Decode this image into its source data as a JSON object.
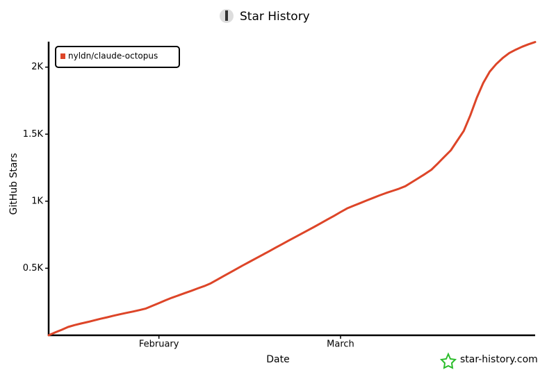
{
  "chart_data": {
    "type": "line",
    "title": "Star History",
    "x_label": "Date",
    "y_label": "GitHub Stars",
    "watermark": "star-history.com",
    "categories": [
      null,
      null,
      null,
      null,
      null,
      null,
      null,
      null,
      null,
      null,
      null,
      null,
      null,
      null,
      null,
      null,
      null,
      "February",
      null,
      null,
      null,
      null,
      null,
      null,
      null,
      null,
      null,
      null,
      null,
      null,
      null,
      null,
      null,
      null,
      null,
      null,
      null,
      null,
      null,
      null,
      null,
      null,
      null,
      null,
      null,
      "March",
      null,
      null,
      null,
      null,
      null,
      null,
      null,
      null,
      null,
      null,
      null,
      null,
      null,
      null,
      null,
      null,
      null,
      null,
      null,
      null,
      null,
      null,
      null,
      null,
      null,
      null,
      null,
      null,
      null,
      null
    ],
    "series": [
      {
        "name": "nyldn/claude-octopus",
        "color": "#dd4528",
        "values": [
          0,
          21,
          41,
          62,
          76,
          88,
          99,
          111,
          123,
          134,
          146,
          157,
          167,
          177,
          188,
          200,
          220,
          240,
          261,
          280,
          297,
          315,
          332,
          350,
          367,
          388,
          415,
          442,
          469,
          496,
          523,
          549,
          575,
          601,
          627,
          654,
          680,
          706,
          732,
          758,
          784,
          810,
          837,
          864,
          891,
          919,
          946,
          966,
          985,
          1005,
          1024,
          1043,
          1061,
          1077,
          1093,
          1112,
          1142,
          1172,
          1202,
          1235,
          1282,
          1331,
          1380,
          1452,
          1524,
          1640,
          1771,
          1882,
          1967,
          2023,
          2068,
          2105,
          2130,
          2152,
          2171,
          2187
        ]
      }
    ],
    "ylim": [
      0,
      2190
    ],
    "yticks": [
      {
        "value": 500,
        "label": "0.5K"
      },
      {
        "value": 1000,
        "label": "1K"
      },
      {
        "value": 1500,
        "label": "1.5K"
      },
      {
        "value": 2000,
        "label": "2K"
      }
    ],
    "legend": "top-left",
    "grid": false
  }
}
